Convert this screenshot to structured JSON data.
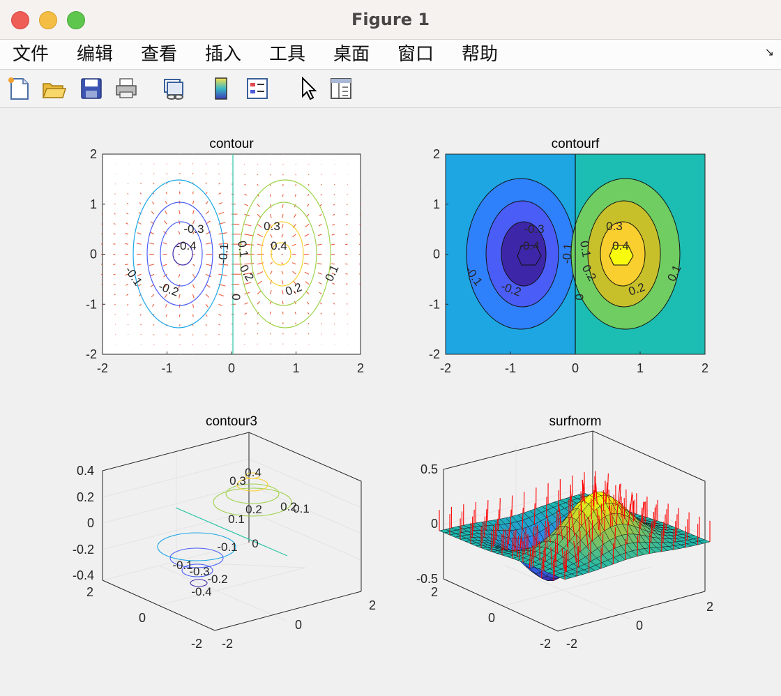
{
  "window": {
    "title": "Figure 1"
  },
  "menu": {
    "items": [
      "文件",
      "编辑",
      "查看",
      "插入",
      "工具",
      "桌面",
      "窗口",
      "帮助"
    ]
  },
  "toolbar": {
    "tools": [
      "new-figure-icon",
      "open-file-icon",
      "save-icon",
      "print-icon",
      "link-plot-icon",
      "insert-colorbar-icon",
      "insert-legend-icon",
      "pointer-icon",
      "property-inspector-icon"
    ]
  },
  "colors": {
    "contour_lines": [
      "#3e26a8",
      "#4a5df7",
      "#1aa6e5",
      "#2cc4a6",
      "#9fd24a",
      "#f9cf2f"
    ],
    "quiver": "#e8401a",
    "normals": "#ff0000"
  },
  "chart_data": [
    {
      "type": "contour",
      "title": "contour",
      "xlim": [
        -2,
        2
      ],
      "ylim": [
        -2,
        2
      ],
      "xticks": [
        "-2",
        "-1",
        "0",
        "1",
        "2"
      ],
      "yticks": [
        "2",
        "1",
        "0",
        "-1",
        "-2"
      ],
      "levels": [
        -0.4,
        -0.3,
        -0.2,
        -0.1,
        0,
        0.1,
        0.2,
        0.3,
        0.4
      ],
      "overlay": "quiver (gradient arrows)",
      "level_labels": [
        "-0.3",
        "-0.4",
        "-0.1",
        "-0.2",
        "-0.1",
        "0.1",
        "0.2",
        "0",
        "0.3",
        "0.4",
        "0.2",
        "0.1"
      ]
    },
    {
      "type": "contourf",
      "title": "contourf",
      "xlim": [
        -2,
        2
      ],
      "ylim": [
        -2,
        2
      ],
      "xticks": [
        "-2",
        "-1",
        "0",
        "1",
        "2"
      ],
      "yticks": [
        "2",
        "1",
        "0",
        "-1",
        "-2"
      ],
      "levels": [
        -0.4,
        -0.3,
        -0.2,
        -0.1,
        0,
        0.1,
        0.2,
        0.3,
        0.4
      ],
      "level_labels": [
        "-0.3",
        "-0.4",
        "-0.1",
        "-0.2",
        "-0.1",
        "0.1",
        "0.2",
        "0",
        "0.3",
        "0.4",
        "0.2",
        "0.1"
      ]
    },
    {
      "type": "contour3",
      "title": "contour3",
      "zticks": [
        "0.4",
        "0.2",
        "0",
        "-0.2",
        "-0.4"
      ],
      "yticks": [
        "2",
        "0",
        "-2"
      ],
      "xticks": [
        "-2",
        "0",
        "2"
      ],
      "level_labels": [
        "0.4",
        "0.3",
        "0.2",
        "0.2",
        "0.1",
        "0.1",
        "0",
        "-0.1",
        "-0.1",
        "-0.3",
        "-0.2",
        "-0.4"
      ]
    },
    {
      "type": "surfnorm",
      "title": "surfnorm",
      "zticks": [
        "0.5",
        "0",
        "-0.5"
      ],
      "yticks": [
        "2",
        "0",
        "-2"
      ],
      "xticks": [
        "-2",
        "0",
        "2"
      ],
      "function": "z = x * exp(-x^2 - y^2)"
    }
  ]
}
